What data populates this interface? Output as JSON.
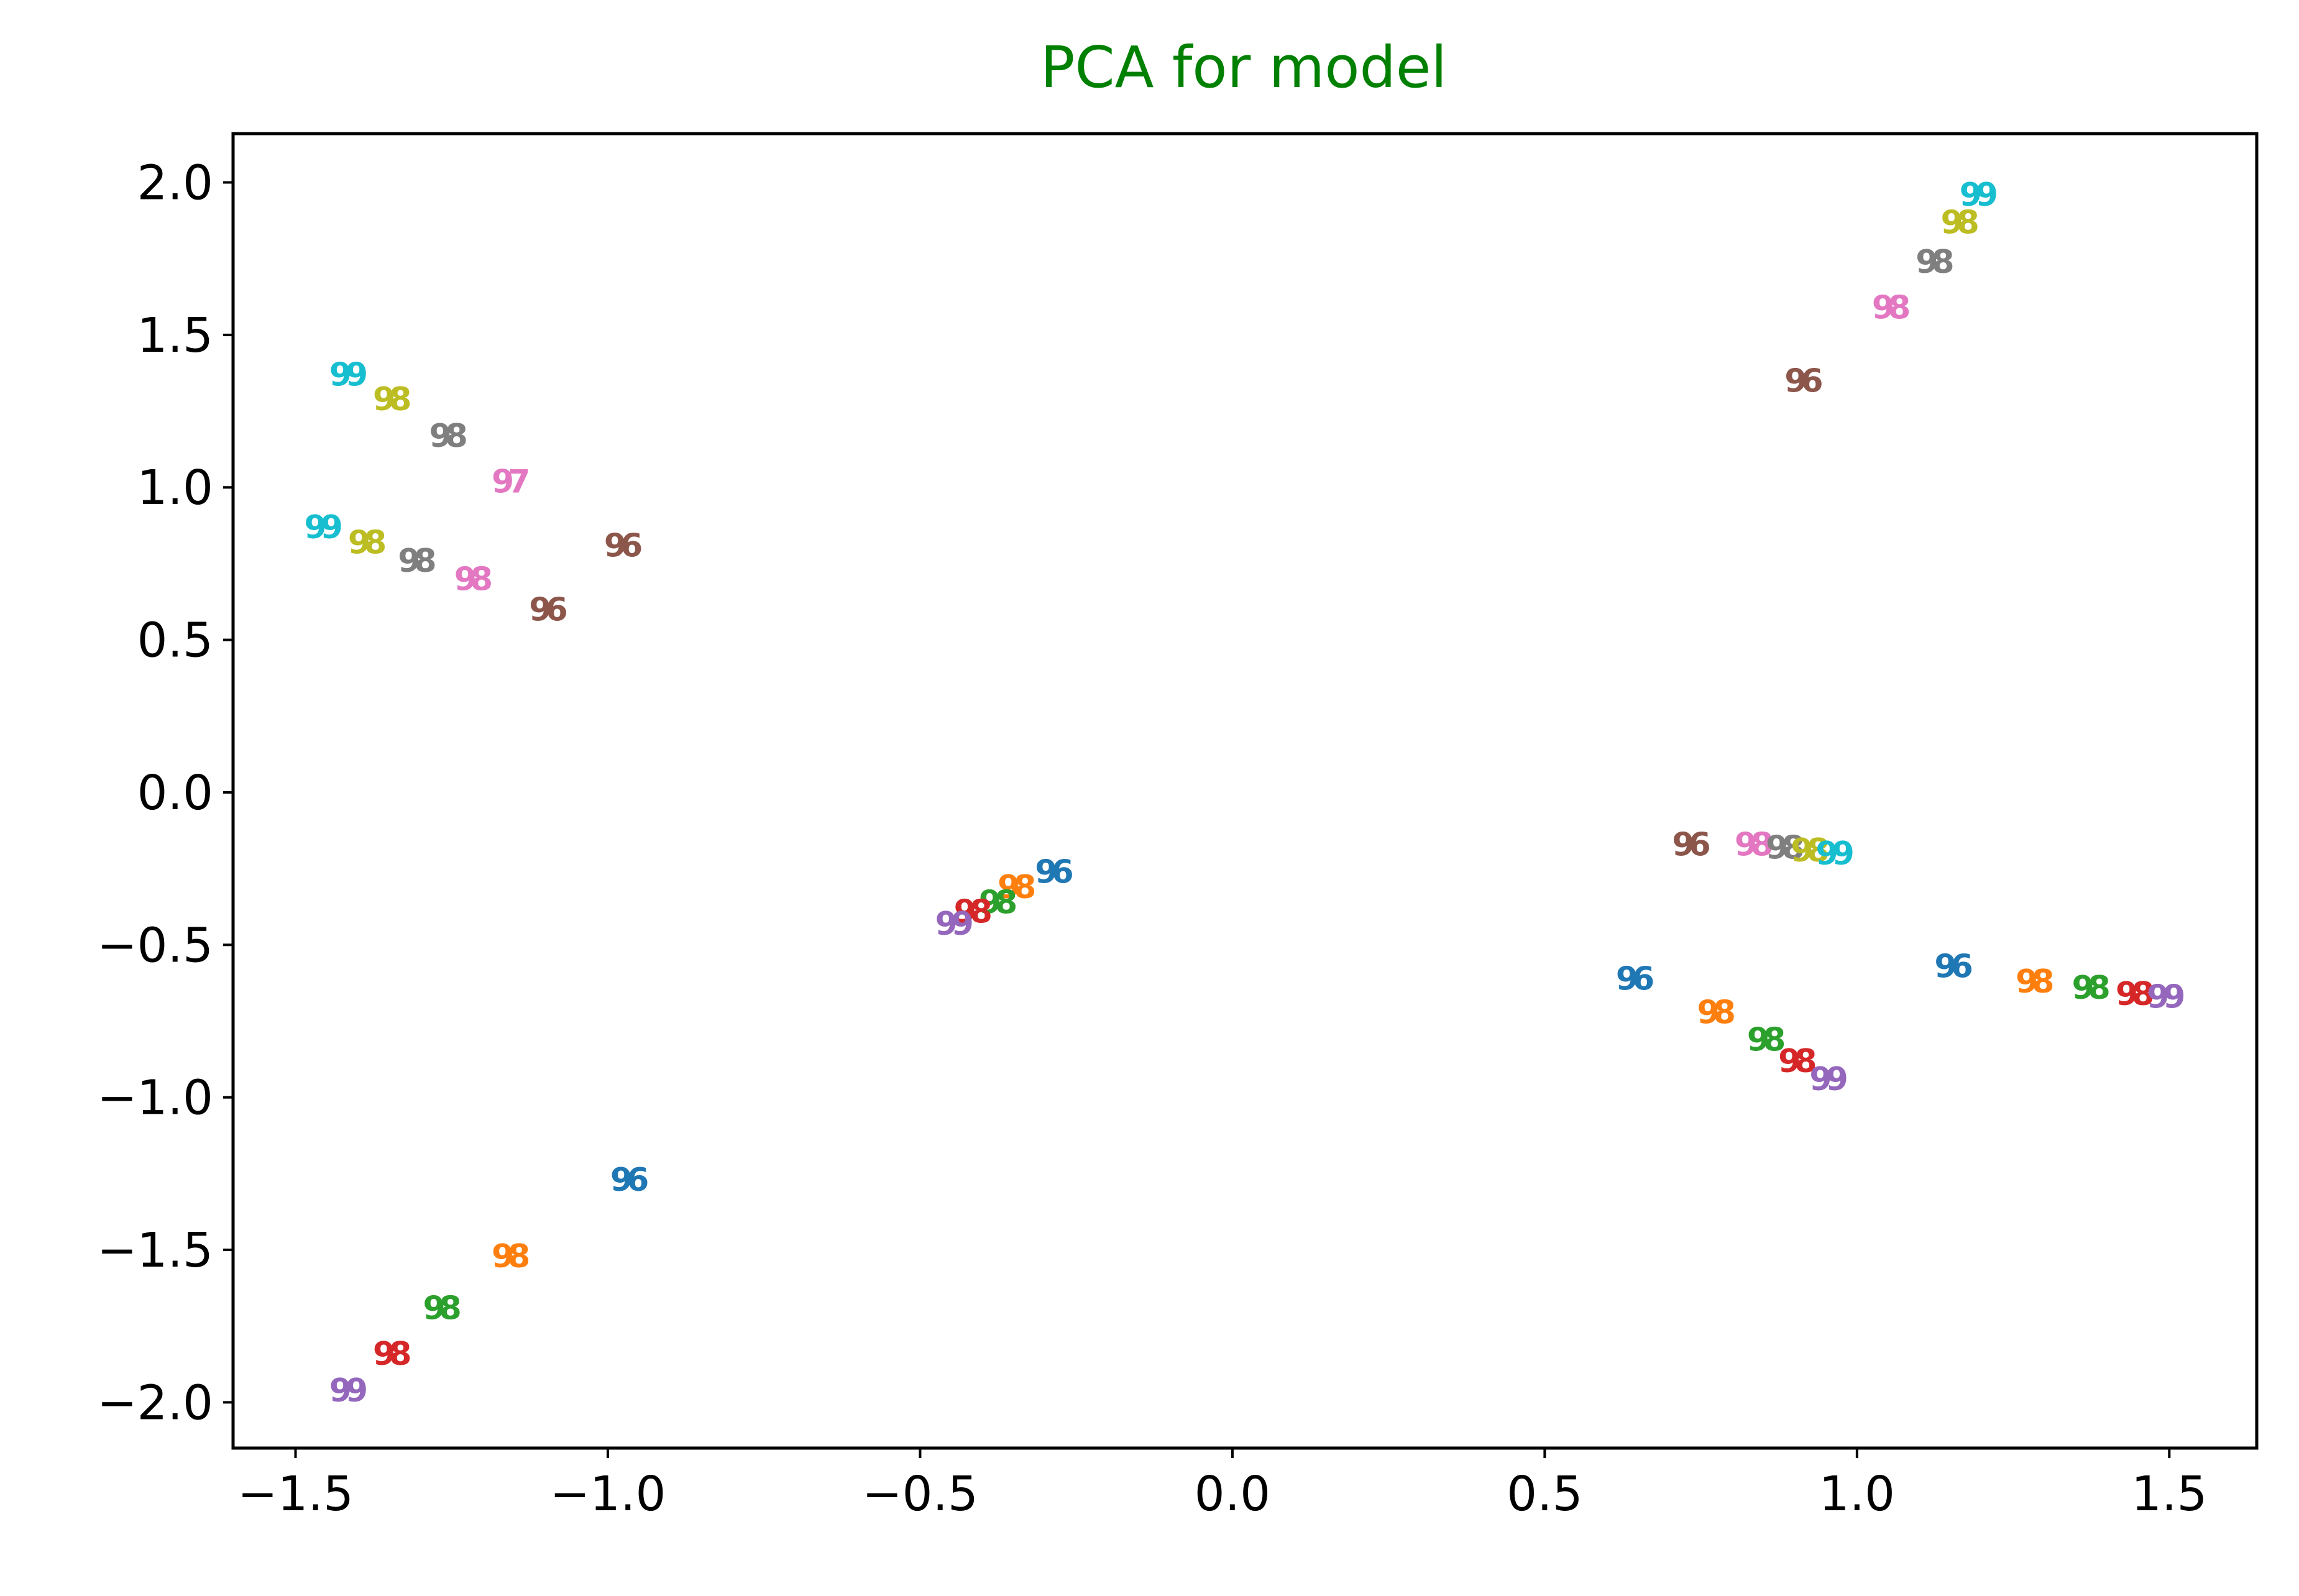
{
  "chart_data": {
    "type": "scatter",
    "title": "PCA for model",
    "title_color": "#008000",
    "xlabel": "",
    "ylabel": "",
    "xlim": [
      -1.6,
      1.64
    ],
    "ylim": [
      -2.15,
      2.16
    ],
    "x_ticks": [
      -1.5,
      -1.0,
      -0.5,
      0.0,
      0.5,
      1.0,
      1.5
    ],
    "x_tick_labels": [
      "−1.5",
      "−1.0",
      "−0.5",
      "0.0",
      "0.5",
      "1.0",
      "1.5"
    ],
    "y_ticks": [
      2.0,
      1.5,
      1.0,
      0.5,
      0.0,
      -0.5,
      -1.0,
      -1.5,
      -2.0
    ],
    "y_tick_labels": [
      "2.0",
      "1.5",
      "1.0",
      "0.5",
      "0.0",
      "−0.5",
      "−1.0",
      "−1.5",
      "−2.0"
    ],
    "grid": false,
    "legend": "none",
    "marker": "text-label",
    "points": [
      {
        "x": -0.97,
        "y": -1.27,
        "label": "96",
        "color": "#1f77b4"
      },
      {
        "x": -1.16,
        "y": -1.52,
        "label": "98",
        "color": "#ff7f0e"
      },
      {
        "x": -1.27,
        "y": -1.69,
        "label": "98",
        "color": "#2ca02c"
      },
      {
        "x": -1.35,
        "y": -1.84,
        "label": "98",
        "color": "#d62728"
      },
      {
        "x": -1.42,
        "y": -1.96,
        "label": "99",
        "color": "#9467bd"
      },
      {
        "x": -0.29,
        "y": -0.26,
        "label": "96",
        "color": "#1f77b4"
      },
      {
        "x": -0.35,
        "y": -0.31,
        "label": "98",
        "color": "#ff7f0e"
      },
      {
        "x": -0.38,
        "y": -0.36,
        "label": "98",
        "color": "#2ca02c"
      },
      {
        "x": -0.42,
        "y": -0.39,
        "label": "98",
        "color": "#d62728"
      },
      {
        "x": -0.45,
        "y": -0.43,
        "label": "99",
        "color": "#9467bd"
      },
      {
        "x": -1.42,
        "y": 1.37,
        "label": "99",
        "color": "#17becf"
      },
      {
        "x": -1.35,
        "y": 1.29,
        "label": "98",
        "color": "#bcbd22"
      },
      {
        "x": -1.26,
        "y": 1.17,
        "label": "98",
        "color": "#7f7f7f"
      },
      {
        "x": -1.16,
        "y": 1.02,
        "label": "97",
        "color": "#e377c2"
      },
      {
        "x": -1.46,
        "y": 0.87,
        "label": "99",
        "color": "#17becf"
      },
      {
        "x": -1.39,
        "y": 0.82,
        "label": "98",
        "color": "#bcbd22"
      },
      {
        "x": -1.31,
        "y": 0.76,
        "label": "98",
        "color": "#7f7f7f"
      },
      {
        "x": -1.22,
        "y": 0.7,
        "label": "98",
        "color": "#e377c2"
      },
      {
        "x": -1.1,
        "y": 0.6,
        "label": "96",
        "color": "#8c564b"
      },
      {
        "x": -0.98,
        "y": 0.81,
        "label": "96",
        "color": "#8c564b"
      },
      {
        "x": 0.91,
        "y": 1.35,
        "label": "96",
        "color": "#8c564b"
      },
      {
        "x": 1.05,
        "y": 1.59,
        "label": "98",
        "color": "#e377c2"
      },
      {
        "x": 1.12,
        "y": 1.74,
        "label": "98",
        "color": "#7f7f7f"
      },
      {
        "x": 1.16,
        "y": 1.87,
        "label": "98",
        "color": "#bcbd22"
      },
      {
        "x": 1.19,
        "y": 1.96,
        "label": "99",
        "color": "#17becf"
      },
      {
        "x": 0.73,
        "y": -0.17,
        "label": "96",
        "color": "#8c564b"
      },
      {
        "x": 0.83,
        "y": -0.17,
        "label": "98",
        "color": "#e377c2"
      },
      {
        "x": 0.88,
        "y": -0.18,
        "label": "98",
        "color": "#7f7f7f"
      },
      {
        "x": 0.92,
        "y": -0.19,
        "label": "98",
        "color": "#bcbd22"
      },
      {
        "x": 0.96,
        "y": -0.2,
        "label": "99",
        "color": "#17becf"
      },
      {
        "x": 0.64,
        "y": -0.61,
        "label": "96",
        "color": "#1f77b4"
      },
      {
        "x": 0.77,
        "y": -0.72,
        "label": "98",
        "color": "#ff7f0e"
      },
      {
        "x": 0.85,
        "y": -0.81,
        "label": "98",
        "color": "#2ca02c"
      },
      {
        "x": 0.9,
        "y": -0.88,
        "label": "98",
        "color": "#d62728"
      },
      {
        "x": 0.95,
        "y": -0.94,
        "label": "99",
        "color": "#9467bd"
      },
      {
        "x": 1.15,
        "y": -0.57,
        "label": "96",
        "color": "#1f77b4"
      },
      {
        "x": 1.28,
        "y": -0.62,
        "label": "98",
        "color": "#ff7f0e"
      },
      {
        "x": 1.37,
        "y": -0.64,
        "label": "98",
        "color": "#2ca02c"
      },
      {
        "x": 1.44,
        "y": -0.66,
        "label": "98",
        "color": "#d62728"
      },
      {
        "x": 1.49,
        "y": -0.67,
        "label": "99",
        "color": "#9467bd"
      }
    ]
  }
}
